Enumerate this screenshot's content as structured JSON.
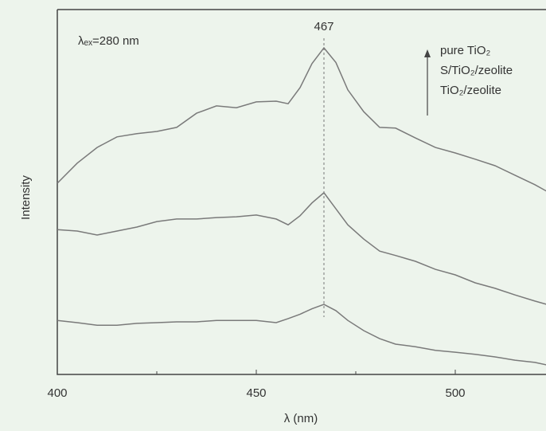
{
  "chart_data": {
    "type": "line",
    "xlabel": "λ (nm)",
    "ylabel": "Intensity",
    "annotation": "λₑₓ=280 nm",
    "peak_line": 467,
    "x": [
      400,
      405,
      410,
      415,
      420,
      425,
      430,
      435,
      440,
      445,
      450,
      455,
      458,
      461,
      464,
      467,
      470,
      473,
      477,
      481,
      485,
      490,
      495,
      500,
      505,
      510,
      515,
      520,
      523
    ],
    "series": [
      {
        "name": "pure TiO₂",
        "color": "#7a7a7a",
        "values": [
          52.4,
          57.9,
          62.2,
          65.1,
          66.0,
          66.6,
          67.7,
          71.6,
          73.6,
          73.1,
          74.7,
          74.9,
          74.2,
          78.6,
          85.2,
          89.5,
          85.5,
          78,
          72,
          67.7,
          67.5,
          64.8,
          62.2,
          60.7,
          59.0,
          57.2,
          54.6,
          52.0,
          50.2
        ]
      },
      {
        "name": "S/TiO₂/zeolite",
        "color": "#7a7a7a",
        "values": [
          39.7,
          39.3,
          38.2,
          39.3,
          40.4,
          41.9,
          42.6,
          42.6,
          43.0,
          43.2,
          43.7,
          42.6,
          41.0,
          43.5,
          47.0,
          49.8,
          45.4,
          41.0,
          37.1,
          33.8,
          32.6,
          31.0,
          28.8,
          27.3,
          25.1,
          23.6,
          21.8,
          20.1,
          19.2
        ]
      },
      {
        "name": "TiO₂/zeolite",
        "color": "#7a7a7a",
        "values": [
          14.8,
          14.2,
          13.5,
          13.5,
          14.0,
          14.2,
          14.4,
          14.4,
          14.8,
          14.8,
          14.8,
          14.2,
          15.3,
          16.5,
          18.0,
          19.2,
          17.5,
          14.8,
          12.0,
          9.8,
          8.3,
          7.6,
          6.6,
          6.1,
          5.5,
          4.8,
          3.9,
          3.3,
          2.6
        ]
      }
    ],
    "xlim": [
      400,
      523
    ],
    "ylim": [
      0,
      100
    ],
    "xticks": [
      400,
      450,
      500
    ],
    "xminorticks": [
      425,
      475
    ]
  }
}
